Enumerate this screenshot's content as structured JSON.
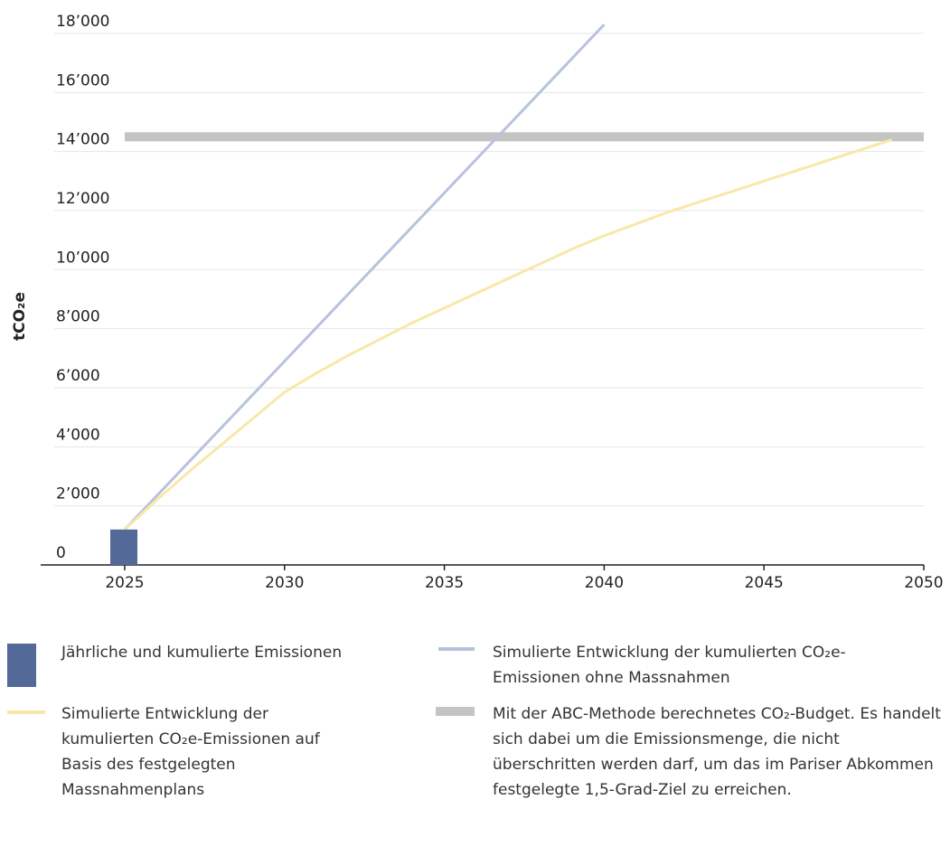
{
  "chart_data": {
    "type": "line",
    "ylabel": "tCO₂e",
    "xlim": [
      2025,
      2050
    ],
    "xticks": [
      2025,
      2030,
      2035,
      2040,
      2045,
      2050
    ],
    "ylim": [
      0,
      18000
    ],
    "yticks": [
      0,
      {
        "value": 2000,
        "label": "2’000"
      },
      {
        "value": 4000,
        "label": "4’000"
      },
      {
        "value": 6000,
        "label": "6’000"
      },
      {
        "value": 8000,
        "label": "8’000"
      },
      {
        "value": 10000,
        "label": "10’000"
      },
      {
        "value": 12000,
        "label": "12’000"
      },
      {
        "value": 14000,
        "label": "14’000"
      },
      {
        "value": 16000,
        "label": "16’000"
      },
      {
        "value": 18000,
        "label": "18’000"
      }
    ],
    "grid": true,
    "series": [
      {
        "name": "Jährliche und kumulierte Emissionen",
        "kind": "bar",
        "color": "#536a99",
        "x": [
          2025
        ],
        "values": [
          1200
        ]
      },
      {
        "name": "Simulierte Entwicklung der kumulierten CO₂e-Emissionen ohne Massnahmen",
        "kind": "line",
        "color": "#b7c3dc",
        "x": [
          2025,
          2040
        ],
        "values": [
          1200,
          18300
        ]
      },
      {
        "name": "Simulierte Entwicklung der kumulierten CO₂e-Emissionen auf Basis des festgelegten Massnahmenplans",
        "kind": "line",
        "color": "#f8e8a8",
        "x": [
          2025,
          2026,
          2027,
          2028,
          2029,
          2030,
          2031,
          2032,
          2033,
          2034,
          2035,
          2036,
          2037,
          2038,
          2039,
          2040,
          2041,
          2042,
          2043,
          2044,
          2045,
          2046,
          2047,
          2048,
          2049
        ],
        "values": [
          1200,
          2200,
          3150,
          4050,
          4950,
          5850,
          6500,
          7100,
          7650,
          8200,
          8700,
          9200,
          9700,
          10200,
          10700,
          11150,
          11550,
          11950,
          12300,
          12650,
          13000,
          13350,
          13700,
          14050,
          14400
        ]
      },
      {
        "name": "Mit der ABC-Methode berechnetes CO₂-Budget. Es handelt sich dabei um die Emissionsmenge, die nicht überschritten werden darf, um das im Pariser Abkommen festgelegte 1,5-Grad-Ziel zu erreichen.",
        "kind": "band",
        "color": "#c4c4c4",
        "x": [
          2025,
          2050
        ],
        "values": [
          14500,
          14500
        ]
      }
    ]
  }
}
